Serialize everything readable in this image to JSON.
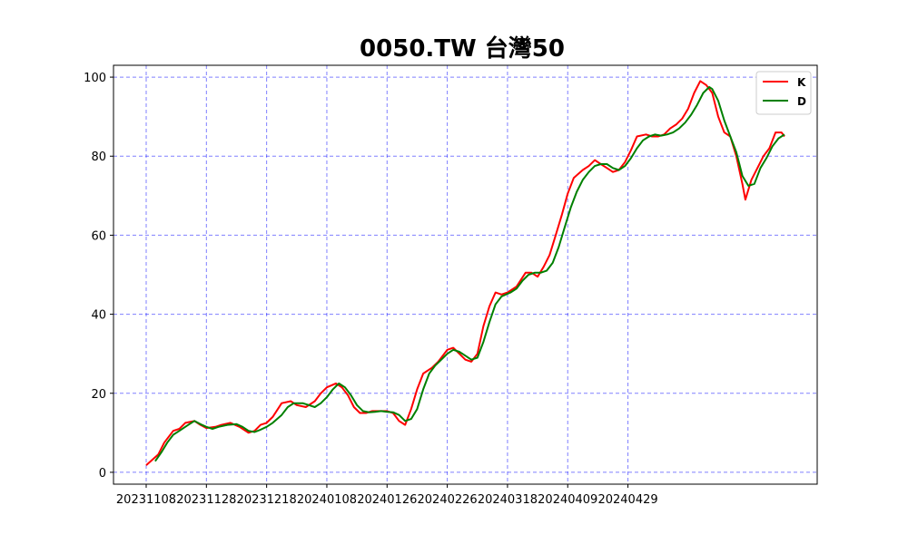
{
  "chart_data": {
    "type": "line",
    "title": "0050.TW 台灣50",
    "xlabel": "",
    "ylabel": "",
    "x_tick_labels": [
      "20231108",
      "20231128",
      "20231218",
      "20240108",
      "20240126",
      "20240226",
      "20240318",
      "20240409",
      "20240429"
    ],
    "x_tick_index": [
      0,
      20,
      40,
      60,
      80,
      100,
      120,
      140,
      160
    ],
    "y_ticks": [
      0,
      20,
      40,
      60,
      80,
      100
    ],
    "ylim": [
      -3,
      103
    ],
    "grid": true,
    "legend_position": "top-right",
    "series": [
      {
        "name": "K",
        "color": "#ff0000",
        "points": [
          [
            0,
            1.8
          ],
          [
            4,
            4.5
          ],
          [
            6,
            7.5
          ],
          [
            9,
            10.5
          ],
          [
            11,
            11
          ],
          [
            13,
            12.5
          ],
          [
            16,
            13
          ],
          [
            18,
            12
          ],
          [
            20,
            11.2
          ],
          [
            23,
            11.5
          ],
          [
            25,
            12
          ],
          [
            28,
            12.5
          ],
          [
            31,
            11.5
          ],
          [
            34,
            10
          ],
          [
            36,
            10.5
          ],
          [
            38,
            12
          ],
          [
            40,
            12.5
          ],
          [
            42,
            14
          ],
          [
            45,
            17.5
          ],
          [
            48,
            18
          ],
          [
            50,
            17
          ],
          [
            53,
            16.5
          ],
          [
            56,
            18
          ],
          [
            58,
            20
          ],
          [
            60,
            21.5
          ],
          [
            63,
            22.5
          ],
          [
            65,
            21.5
          ],
          [
            67,
            19.5
          ],
          [
            69,
            16.5
          ],
          [
            71,
            15
          ],
          [
            73,
            15
          ],
          [
            75,
            15.5
          ],
          [
            78,
            15.5
          ],
          [
            80,
            15.5
          ],
          [
            82,
            15
          ],
          [
            84,
            13
          ],
          [
            86,
            12
          ],
          [
            88,
            16
          ],
          [
            90,
            21
          ],
          [
            92,
            25
          ],
          [
            95,
            26.5
          ],
          [
            97,
            28
          ],
          [
            100,
            31
          ],
          [
            102,
            31.5
          ],
          [
            104,
            30
          ],
          [
            106,
            28.5
          ],
          [
            108,
            28
          ],
          [
            110,
            30
          ],
          [
            112,
            37
          ],
          [
            114,
            42
          ],
          [
            116,
            45.5
          ],
          [
            118,
            45
          ],
          [
            120,
            45.5
          ],
          [
            123,
            47
          ],
          [
            126,
            50.5
          ],
          [
            128,
            50.5
          ],
          [
            130,
            49.5
          ],
          [
            132,
            52
          ],
          [
            134,
            55
          ],
          [
            136,
            60
          ],
          [
            138,
            65
          ],
          [
            140,
            70.5
          ],
          [
            142,
            74.5
          ],
          [
            145,
            76.5
          ],
          [
            147,
            77.5
          ],
          [
            149,
            79
          ],
          [
            151,
            78
          ],
          [
            153,
            77
          ],
          [
            155,
            76
          ],
          [
            157,
            76.5
          ],
          [
            159,
            78.5
          ],
          [
            161,
            81.5
          ],
          [
            163,
            85
          ],
          [
            166,
            85.5
          ],
          [
            168,
            85
          ],
          [
            170,
            85
          ],
          [
            172,
            85.5
          ],
          [
            174,
            87
          ],
          [
            176,
            88
          ],
          [
            178,
            89.5
          ],
          [
            180,
            92
          ],
          [
            182,
            96
          ],
          [
            184,
            99
          ],
          [
            186,
            98
          ],
          [
            188,
            96
          ],
          [
            190,
            90
          ],
          [
            192,
            86
          ],
          [
            194,
            85
          ],
          [
            196,
            80
          ],
          [
            198,
            73
          ],
          [
            199,
            69
          ],
          [
            201,
            74
          ],
          [
            203,
            77
          ],
          [
            205,
            80
          ],
          [
            207,
            82
          ],
          [
            209,
            86
          ],
          [
            211,
            86
          ],
          [
            212,
            85
          ]
        ]
      },
      {
        "name": "D",
        "color": "#008000",
        "points": [
          [
            3,
            2.8
          ],
          [
            5,
            5
          ],
          [
            7,
            7.5
          ],
          [
            9,
            9.5
          ],
          [
            11,
            10.5
          ],
          [
            14,
            12
          ],
          [
            16,
            13
          ],
          [
            18,
            12.2
          ],
          [
            20,
            11.5
          ],
          [
            22,
            11
          ],
          [
            24,
            11.5
          ],
          [
            27,
            12
          ],
          [
            30,
            12.2
          ],
          [
            32,
            11.5
          ],
          [
            34,
            10.5
          ],
          [
            36,
            10.2
          ],
          [
            38,
            10.8
          ],
          [
            40,
            11.5
          ],
          [
            42,
            12.5
          ],
          [
            45,
            14.5
          ],
          [
            47,
            16.5
          ],
          [
            49,
            17.5
          ],
          [
            52,
            17.5
          ],
          [
            54,
            17
          ],
          [
            56,
            16.5
          ],
          [
            58,
            17.5
          ],
          [
            60,
            19
          ],
          [
            62,
            21
          ],
          [
            64,
            22.5
          ],
          [
            66,
            21.5
          ],
          [
            68,
            19.5
          ],
          [
            70,
            17
          ],
          [
            72,
            15.5
          ],
          [
            74,
            15.2
          ],
          [
            76,
            15.3
          ],
          [
            78,
            15.5
          ],
          [
            80,
            15.3
          ],
          [
            82,
            15.2
          ],
          [
            84,
            14.5
          ],
          [
            86,
            13
          ],
          [
            88,
            13.5
          ],
          [
            90,
            16
          ],
          [
            92,
            21
          ],
          [
            94,
            25
          ],
          [
            96,
            27
          ],
          [
            98,
            28.5
          ],
          [
            100,
            30
          ],
          [
            102,
            31
          ],
          [
            104,
            30.5
          ],
          [
            106,
            29.5
          ],
          [
            108,
            28.5
          ],
          [
            110,
            29
          ],
          [
            112,
            33
          ],
          [
            114,
            38
          ],
          [
            116,
            42.5
          ],
          [
            118,
            44.5
          ],
          [
            121,
            45.5
          ],
          [
            123,
            46.5
          ],
          [
            125,
            48.5
          ],
          [
            127,
            50
          ],
          [
            129,
            50.5
          ],
          [
            131,
            50.5
          ],
          [
            133,
            51
          ],
          [
            135,
            53
          ],
          [
            137,
            57
          ],
          [
            139,
            62
          ],
          [
            141,
            67
          ],
          [
            143,
            71
          ],
          [
            145,
            74
          ],
          [
            147,
            76
          ],
          [
            149,
            77.5
          ],
          [
            151,
            78
          ],
          [
            153,
            78
          ],
          [
            155,
            77
          ],
          [
            157,
            76.5
          ],
          [
            159,
            77.5
          ],
          [
            161,
            79.5
          ],
          [
            163,
            82
          ],
          [
            165,
            84
          ],
          [
            167,
            85
          ],
          [
            169,
            85.5
          ],
          [
            171,
            85.2
          ],
          [
            173,
            85.5
          ],
          [
            175,
            86
          ],
          [
            177,
            87
          ],
          [
            179,
            88.5
          ],
          [
            181,
            90.5
          ],
          [
            183,
            93
          ],
          [
            185,
            96
          ],
          [
            187,
            97.5
          ],
          [
            188,
            97
          ],
          [
            190,
            94
          ],
          [
            192,
            89
          ],
          [
            194,
            85
          ],
          [
            196,
            81
          ],
          [
            197,
            78
          ],
          [
            198,
            75
          ],
          [
            200,
            72.5
          ],
          [
            202,
            73
          ],
          [
            204,
            77
          ],
          [
            206,
            79.5
          ],
          [
            208,
            82.5
          ],
          [
            210,
            84.5
          ],
          [
            212,
            85.5
          ]
        ]
      }
    ]
  }
}
